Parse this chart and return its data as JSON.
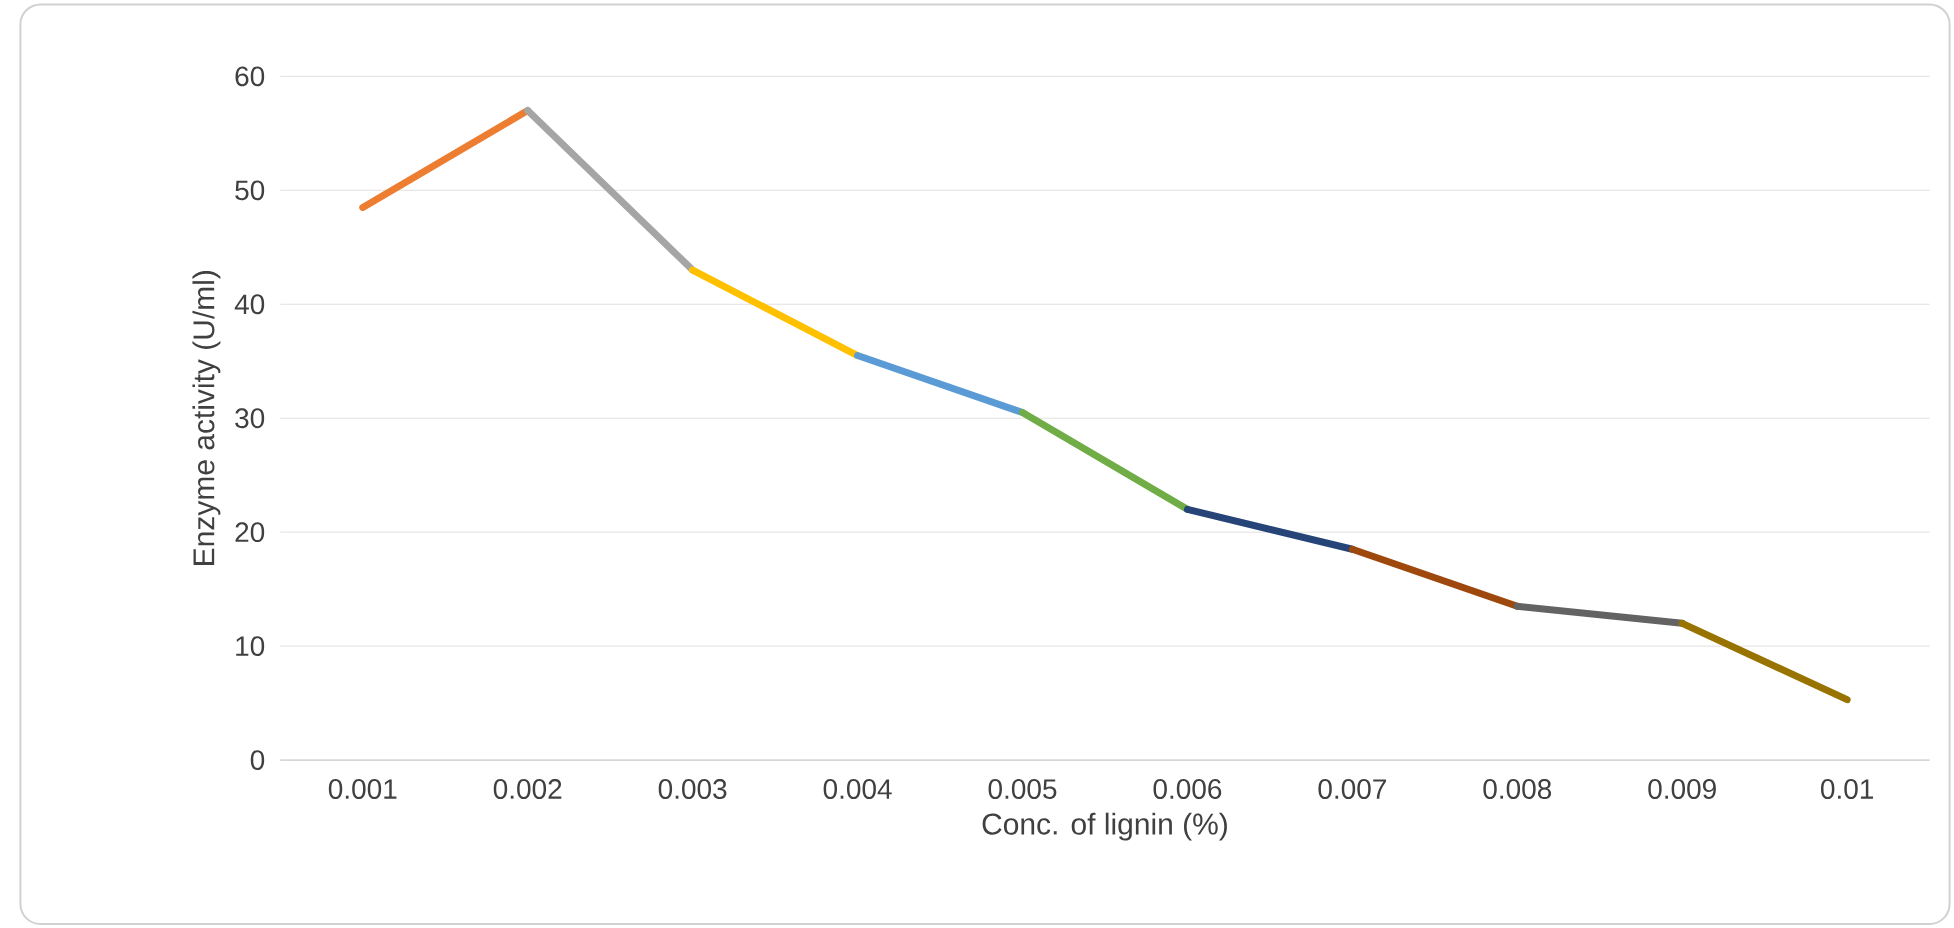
{
  "chart_data": {
    "type": "line",
    "xlabel": "Conc. of lignin (%)",
    "ylabel": "Enzyme activity (U/ml)",
    "categories": [
      "0.001",
      "0.002",
      "0.003",
      "0.004",
      "0.005",
      "0.006",
      "0.007",
      "0.008",
      "0.009",
      "0.01"
    ],
    "series": [
      {
        "color": "#ed7d31",
        "values": [
          48.5,
          57,
          null,
          null,
          null,
          null,
          null,
          null,
          null,
          null
        ]
      },
      {
        "color": "#a5a5a5",
        "values": [
          null,
          57,
          43,
          null,
          null,
          null,
          null,
          null,
          null,
          null
        ]
      },
      {
        "color": "#ffc000",
        "values": [
          null,
          null,
          43,
          35.5,
          null,
          null,
          null,
          null,
          null,
          null
        ]
      },
      {
        "color": "#5b9bd5",
        "values": [
          null,
          null,
          null,
          35.5,
          30.5,
          null,
          null,
          null,
          null,
          null
        ]
      },
      {
        "color": "#70ad47",
        "values": [
          null,
          null,
          null,
          null,
          30.5,
          22,
          null,
          null,
          null,
          null
        ]
      },
      {
        "color": "#264478",
        "values": [
          null,
          null,
          null,
          null,
          null,
          22,
          18.5,
          null,
          null,
          null
        ]
      },
      {
        "color": "#9e480e",
        "values": [
          null,
          null,
          null,
          null,
          null,
          null,
          18.5,
          13.5,
          null,
          null
        ]
      },
      {
        "color": "#636363",
        "values": [
          null,
          null,
          null,
          null,
          null,
          null,
          null,
          13.5,
          12,
          null
        ]
      },
      {
        "color": "#997300",
        "values": [
          null,
          null,
          null,
          null,
          null,
          null,
          null,
          null,
          12,
          5.3
        ]
      }
    ],
    "ylim": [
      0,
      60
    ],
    "yticks": [
      0,
      10,
      20,
      30,
      40,
      50,
      60
    ],
    "grid": "y",
    "marker": "none",
    "line_style": "solid"
  }
}
